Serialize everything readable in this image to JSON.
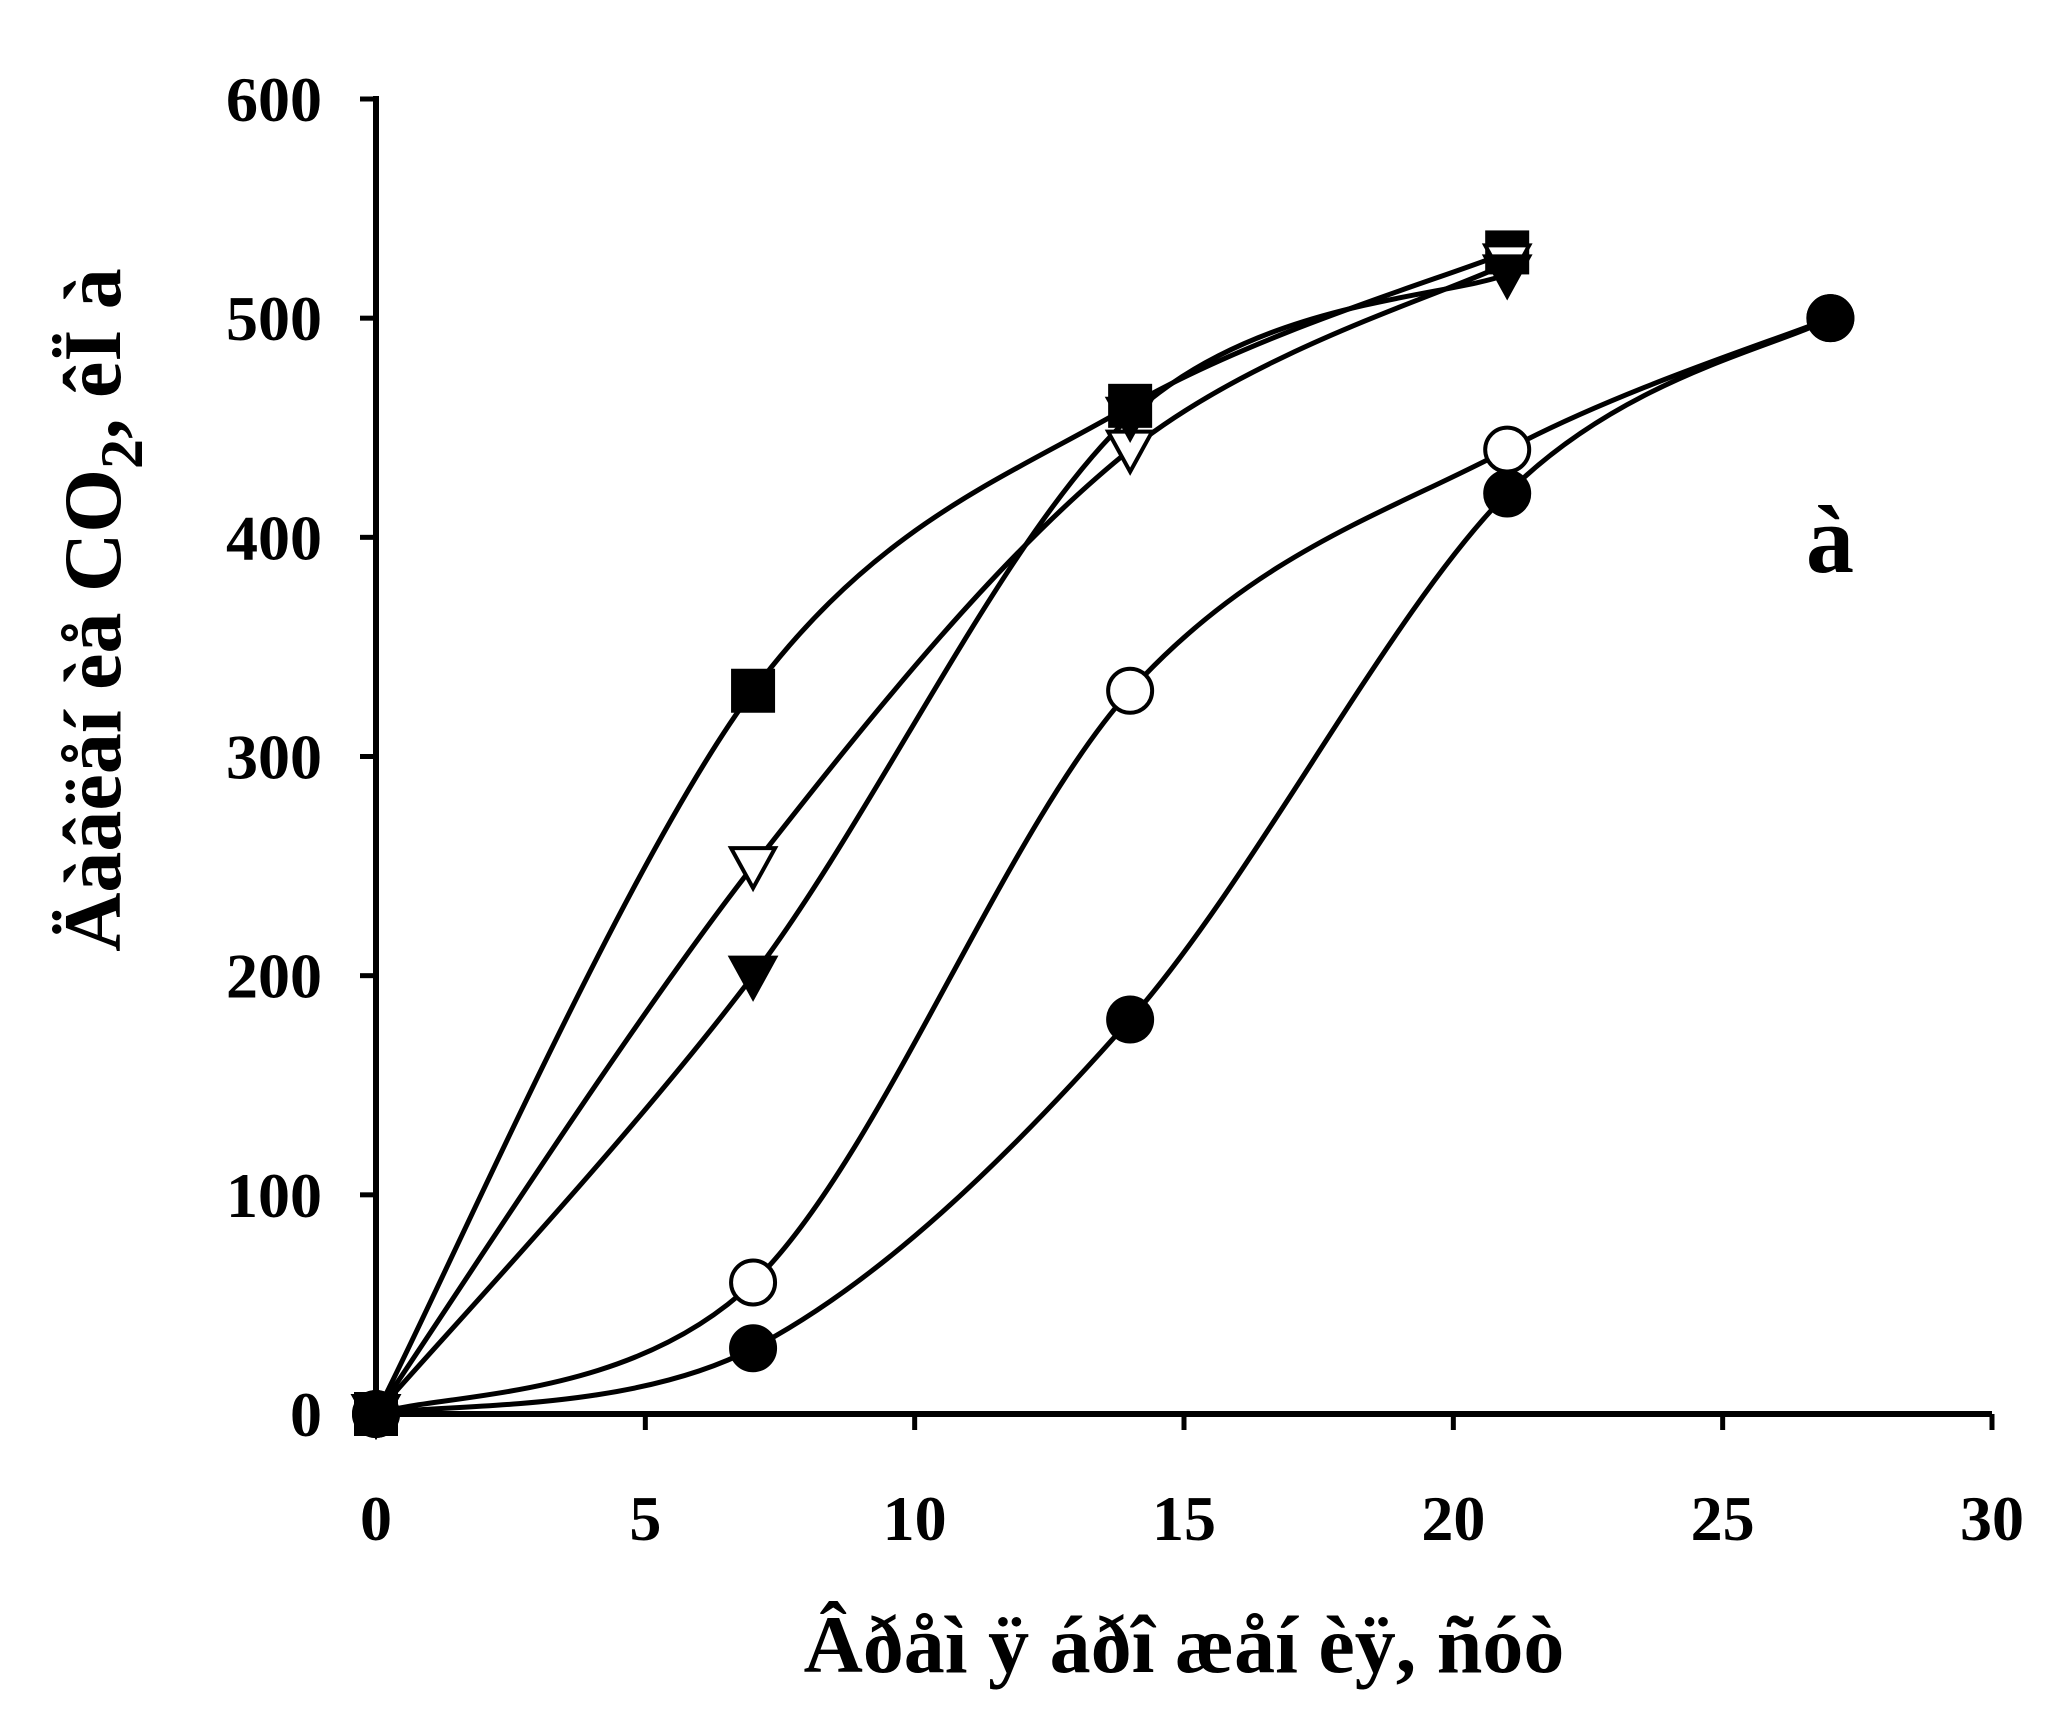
{
  "chart_data": {
    "type": "line",
    "title": "",
    "xlabel": "Âðåì ÿ áðî æåí èÿ, ñóò",
    "ylabel_main": "Äàâëåí èå CO",
    "ylabel_sub": "2",
    "ylabel_tail": ", êÏ à",
    "panel_label": "à",
    "xlim": [
      0,
      30
    ],
    "ylim": [
      0,
      600
    ],
    "xticks": [
      0,
      5,
      10,
      15,
      20,
      25,
      30
    ],
    "yticks": [
      0,
      100,
      200,
      300,
      400,
      500,
      600
    ],
    "grid": false,
    "series": [
      {
        "marker": "square-filled",
        "x": [
          0,
          7,
          14,
          21
        ],
        "y": [
          0,
          330,
          460,
          530
        ]
      },
      {
        "marker": "triangle-down-open",
        "x": [
          0,
          7,
          14,
          21
        ],
        "y": [
          0,
          250,
          440,
          525
        ]
      },
      {
        "marker": "triangle-down-filled",
        "x": [
          0,
          7,
          14,
          21
        ],
        "y": [
          0,
          200,
          455,
          520
        ]
      },
      {
        "marker": "circle-open",
        "x": [
          0,
          7,
          14,
          21,
          27
        ],
        "y": [
          0,
          60,
          330,
          440,
          500
        ]
      },
      {
        "marker": "circle-filled",
        "x": [
          0,
          7,
          14,
          21,
          27
        ],
        "y": [
          0,
          30,
          180,
          420,
          500
        ]
      }
    ],
    "colors": {
      "line": "#000000",
      "open_fill": "#ffffff",
      "filled": "#000000"
    }
  }
}
